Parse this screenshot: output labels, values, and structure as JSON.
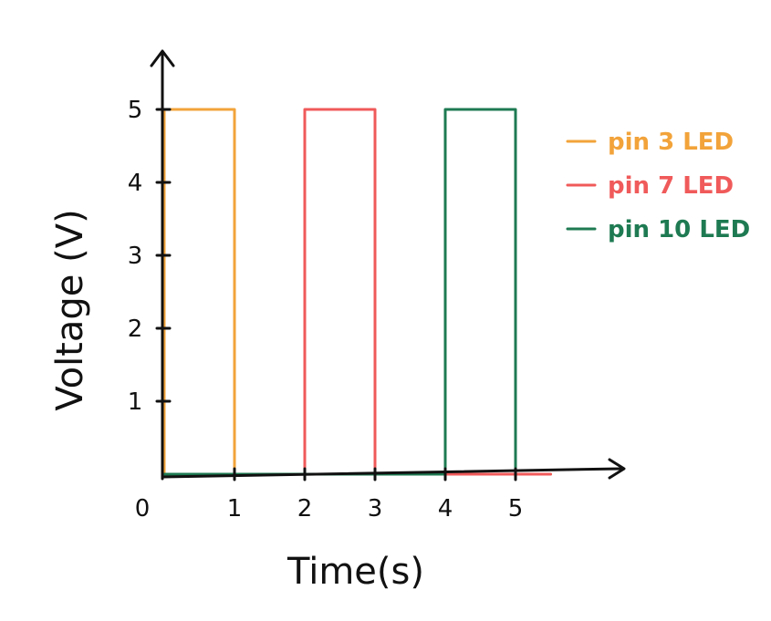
{
  "chart_data": {
    "type": "line",
    "title": "",
    "xlabel": "Time(s)",
    "ylabel": "Voltage (V)",
    "xlim": [
      0,
      5.5
    ],
    "ylim": [
      0,
      5
    ],
    "x_ticks": [
      {
        "value": 0,
        "label": "0"
      },
      {
        "value": 1,
        "label": "1"
      },
      {
        "value": 2,
        "label": "2"
      },
      {
        "value": 3,
        "label": "3"
      },
      {
        "value": 4,
        "label": "4"
      },
      {
        "value": 5,
        "label": "5"
      }
    ],
    "y_ticks": [
      {
        "value": 1,
        "label": "1"
      },
      {
        "value": 2,
        "label": "2"
      },
      {
        "value": 3,
        "label": "3"
      },
      {
        "value": 4,
        "label": "4"
      },
      {
        "value": 5,
        "label": "5"
      }
    ],
    "legend_position": "top-right",
    "series": [
      {
        "name": "pin 3 LED",
        "color": "#f2a33a",
        "points": [
          [
            0,
            0
          ],
          [
            0,
            5
          ],
          [
            1,
            5
          ],
          [
            1,
            0
          ],
          [
            5.5,
            0
          ]
        ]
      },
      {
        "name": "pin 7 LED",
        "color": "#f05a5a",
        "points": [
          [
            2,
            0
          ],
          [
            2,
            5
          ],
          [
            3,
            5
          ],
          [
            3,
            0
          ],
          [
            5.5,
            0
          ]
        ]
      },
      {
        "name": "pin 10 LED",
        "color": "#1e7a52",
        "points": [
          [
            0,
            0
          ],
          [
            4,
            0
          ],
          [
            4,
            5
          ],
          [
            5,
            5
          ],
          [
            5,
            0
          ]
        ]
      }
    ]
  }
}
